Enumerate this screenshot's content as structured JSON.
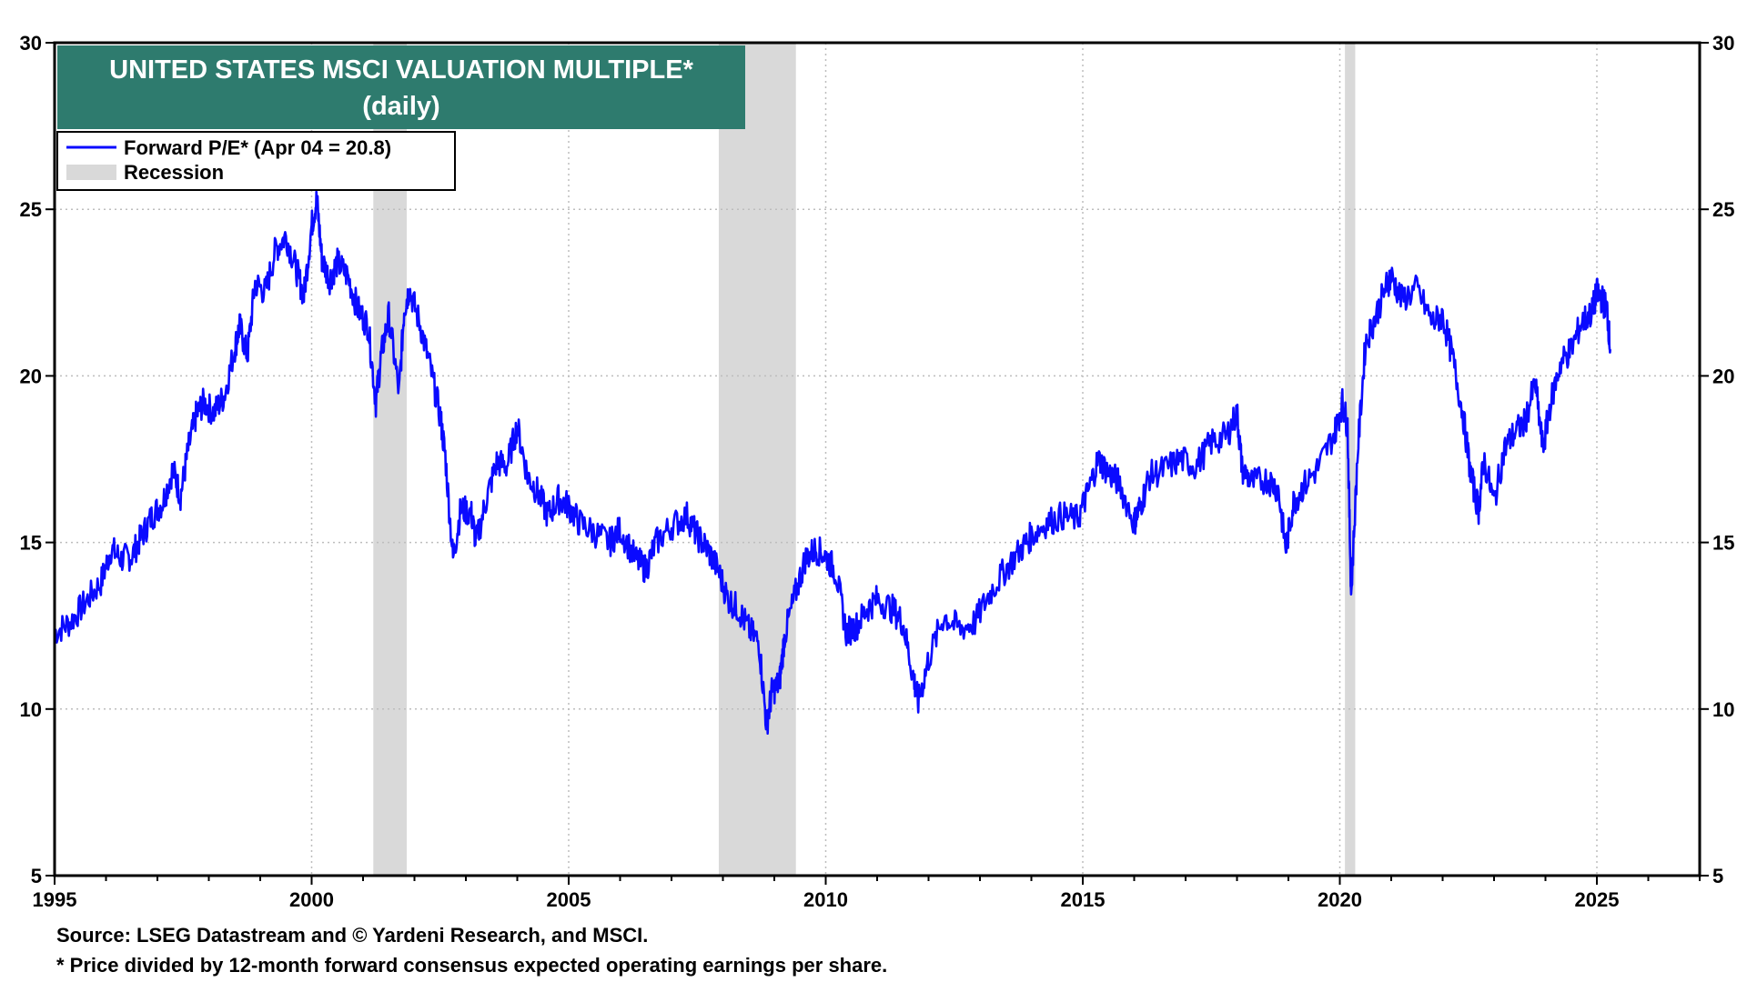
{
  "colors": {
    "series": "#0a0aff",
    "recession": "#d9d9d9",
    "title_bg": "#2e7b6e",
    "title_text": "#ffffff",
    "grid": "#bdbdbd"
  },
  "footnotes": {
    "source": "Source: LSEG Datastream and © Yardeni Research, and MSCI.",
    "note": "* Price divided by 12-month forward consensus expected operating earnings per share."
  },
  "chart_data": {
    "type": "line",
    "title": "UNITED STATES MSCI VALUATION MULTIPLE*",
    "subtitle": "(daily)",
    "xlabel": "",
    "ylabel": "",
    "xlim": [
      1995,
      2027
    ],
    "ylim": [
      5,
      30
    ],
    "x_ticks": [
      1995,
      2000,
      2005,
      2010,
      2015,
      2020,
      2025
    ],
    "x_tick_labels": [
      "1995",
      "2000",
      "2005",
      "2010",
      "2015",
      "2020",
      "2025"
    ],
    "y_ticks": [
      5,
      10,
      15,
      20,
      25,
      30
    ],
    "y_tick_labels_left": [
      "5",
      "10",
      "15",
      "20",
      "25",
      "30"
    ],
    "y_tick_labels_right": [
      "5",
      "10",
      "15",
      "20",
      "25",
      "30"
    ],
    "grid": true,
    "legend_position": "top-left",
    "legend": [
      {
        "label": "Forward P/E* (Apr 04 = 20.8)",
        "kind": "line"
      },
      {
        "label": "Recession",
        "kind": "band"
      }
    ],
    "recessions": [
      {
        "start": 2001.2,
        "end": 2001.85
      },
      {
        "start": 2007.92,
        "end": 2009.42
      },
      {
        "start": 2020.1,
        "end": 2020.3
      }
    ],
    "series": [
      {
        "name": "Forward P/E*",
        "x": [
          1995.0,
          1995.3,
          1995.6,
          1995.9,
          1996.1,
          1996.3,
          1996.5,
          1996.7,
          1996.9,
          1997.1,
          1997.3,
          1997.45,
          1997.6,
          1997.75,
          1997.9,
          1998.1,
          1998.3,
          1998.5,
          1998.6,
          1998.75,
          1998.9,
          1999.1,
          1999.3,
          1999.5,
          1999.7,
          1999.85,
          2000.0,
          2000.1,
          2000.2,
          2000.35,
          2000.5,
          2000.7,
          2000.9,
          2001.1,
          2001.25,
          2001.35,
          2001.5,
          2001.7,
          2001.8,
          2001.9,
          2002.1,
          2002.3,
          2002.5,
          2002.6,
          2002.75,
          2002.9,
          2003.1,
          2003.2,
          2003.4,
          2003.6,
          2003.8,
          2004.0,
          2004.2,
          2004.4,
          2004.6,
          2004.8,
          2005.0,
          2005.2,
          2005.5,
          2005.8,
          2006.0,
          2006.3,
          2006.5,
          2006.7,
          2007.0,
          2007.3,
          2007.5,
          2007.7,
          2007.9,
          2008.1,
          2008.3,
          2008.5,
          2008.7,
          2008.85,
          2008.95,
          2009.1,
          2009.2,
          2009.4,
          2009.6,
          2009.8,
          2010.0,
          2010.2,
          2010.4,
          2010.6,
          2010.8,
          2011.0,
          2011.3,
          2011.5,
          2011.7,
          2011.8,
          2012.0,
          2012.3,
          2012.6,
          2012.9,
          2013.2,
          2013.5,
          2013.8,
          2014.0,
          2014.3,
          2014.6,
          2014.9,
          2015.1,
          2015.3,
          2015.5,
          2015.7,
          2016.0,
          2016.1,
          2016.3,
          2016.6,
          2016.9,
          2017.2,
          2017.5,
          2017.8,
          2018.0,
          2018.1,
          2018.3,
          2018.6,
          2018.8,
          2018.95,
          2019.1,
          2019.3,
          2019.6,
          2019.9,
          2020.05,
          2020.15,
          2020.22,
          2020.35,
          2020.5,
          2020.7,
          2020.9,
          2021.0,
          2021.2,
          2021.5,
          2021.8,
          2022.0,
          2022.2,
          2022.4,
          2022.55,
          2022.7,
          2022.8,
          2023.0,
          2023.2,
          2023.4,
          2023.6,
          2023.8,
          2023.95,
          2024.1,
          2024.3,
          2024.5,
          2024.7,
          2024.9,
          2025.0,
          2025.1,
          2025.2,
          2025.26
        ],
        "values": [
          12.3,
          12.6,
          13.2,
          13.8,
          14.8,
          14.5,
          14.6,
          15.2,
          15.8,
          16.2,
          17.2,
          16.4,
          17.8,
          18.8,
          19.2,
          18.9,
          19.4,
          20.8,
          21.5,
          20.6,
          22.8,
          22.5,
          23.8,
          24.2,
          23.2,
          22.4,
          24.5,
          25.3,
          23.5,
          22.9,
          23.4,
          23.0,
          22.0,
          21.5,
          19.2,
          20.6,
          21.8,
          19.5,
          22.0,
          22.6,
          21.6,
          20.3,
          18.8,
          17.6,
          14.5,
          16.0,
          15.9,
          15.0,
          16.3,
          17.4,
          17.3,
          18.5,
          17.0,
          16.5,
          15.8,
          16.3,
          16.1,
          15.6,
          15.3,
          15.0,
          15.4,
          14.5,
          14.2,
          15.0,
          15.5,
          15.8,
          15.2,
          14.8,
          14.2,
          13.3,
          13.0,
          12.4,
          12.0,
          9.5,
          10.5,
          10.8,
          12.2,
          13.4,
          14.5,
          14.8,
          14.6,
          14.1,
          12.3,
          12.5,
          13.0,
          13.3,
          13.0,
          12.6,
          11.0,
          10.2,
          11.5,
          12.8,
          12.4,
          12.6,
          13.5,
          14.2,
          14.8,
          15.2,
          15.6,
          15.8,
          15.7,
          16.5,
          17.5,
          17.1,
          16.8,
          15.6,
          16.0,
          17.0,
          17.2,
          17.5,
          17.3,
          18.0,
          18.2,
          18.9,
          17.2,
          16.8,
          16.9,
          16.6,
          14.8,
          16.2,
          16.7,
          17.3,
          18.3,
          19.2,
          18.5,
          13.4,
          17.8,
          21.0,
          21.8,
          22.7,
          23.0,
          22.3,
          22.6,
          21.6,
          21.8,
          20.5,
          18.8,
          17.0,
          16.0,
          17.5,
          16.2,
          17.8,
          18.3,
          18.6,
          19.8,
          17.8,
          19.2,
          20.4,
          20.8,
          21.6,
          21.9,
          22.5,
          22.3,
          22.0,
          20.8
        ]
      }
    ]
  }
}
